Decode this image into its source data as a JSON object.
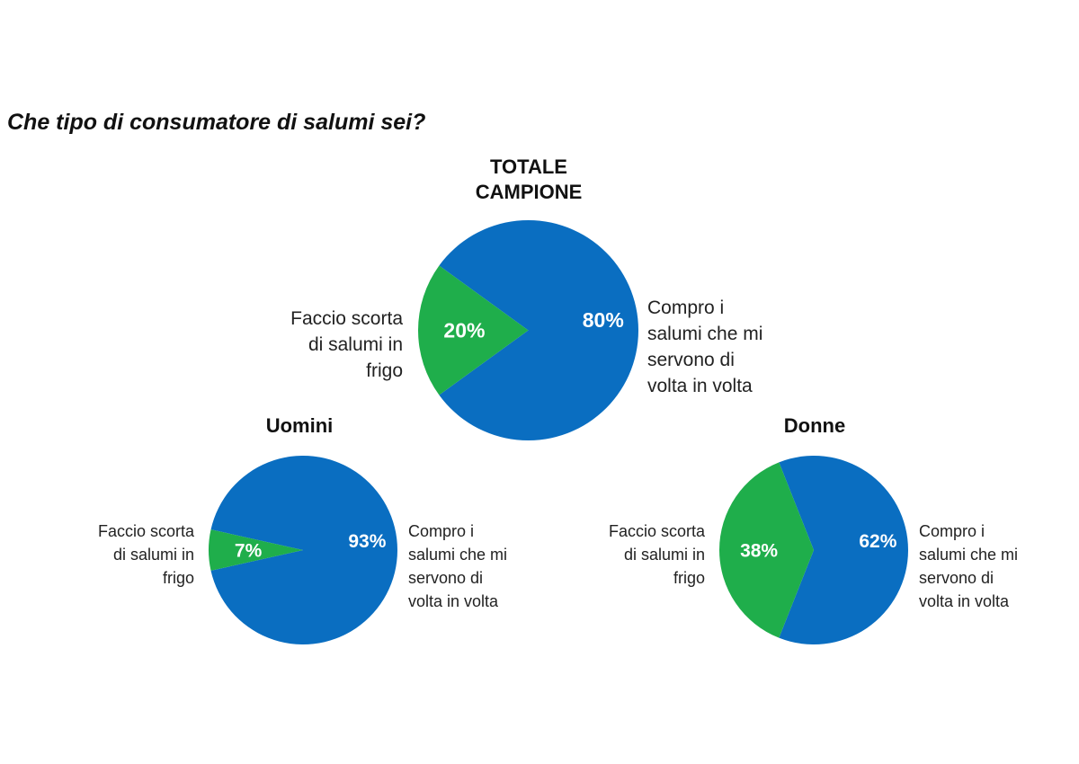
{
  "question": "Che tipo di consumatore di salumi sei?",
  "colors": {
    "blue": "#0a6ec1",
    "green": "#1fae4b"
  },
  "chart_data": [
    {
      "type": "pie",
      "title": "TOTALE CAMPIONE",
      "title_lines": [
        "TOTALE",
        "CAMPIONE"
      ],
      "slices": [
        {
          "label": "Compro i salumi che mi servono di volta in volta",
          "label_lines": [
            "Compro i",
            "salumi che mi",
            "servono di",
            "volta in volta"
          ],
          "value": 80,
          "value_label": "80%",
          "color": "#0a6ec1"
        },
        {
          "label": "Faccio scorta di salumi in frigo",
          "label_lines": [
            "Faccio scorta",
            "di salumi in",
            "frigo"
          ],
          "value": 20,
          "value_label": "20%",
          "color": "#1fae4b"
        }
      ]
    },
    {
      "type": "pie",
      "title": "Uomini",
      "title_lines": [
        "Uomini"
      ],
      "slices": [
        {
          "label": "Compro i salumi che mi servono di volta in volta",
          "label_lines": [
            "Compro i",
            "salumi che mi",
            "servono di",
            "volta in volta"
          ],
          "value": 93,
          "value_label": "93%",
          "color": "#0a6ec1"
        },
        {
          "label": "Faccio scorta di salumi in frigo",
          "label_lines": [
            "Faccio scorta",
            "di salumi in",
            "frigo"
          ],
          "value": 7,
          "value_label": "7%",
          "color": "#1fae4b"
        }
      ]
    },
    {
      "type": "pie",
      "title": "Donne",
      "title_lines": [
        "Donne"
      ],
      "slices": [
        {
          "label": "Compro i salumi che mi servono di volta in volta",
          "label_lines": [
            "Compro i",
            "salumi che mi",
            "servono di",
            "volta in volta"
          ],
          "value": 62,
          "value_label": "62%",
          "color": "#0a6ec1"
        },
        {
          "label": "Faccio scorta di salumi in frigo",
          "label_lines": [
            "Faccio scorta",
            "di salumi in",
            "frigo"
          ],
          "value": 38,
          "value_label": "38%",
          "color": "#1fae4b"
        }
      ]
    }
  ]
}
